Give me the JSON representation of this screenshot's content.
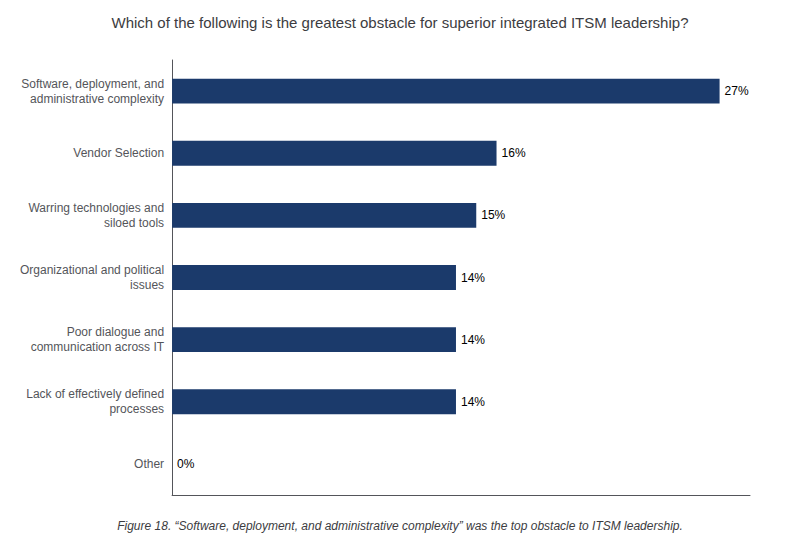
{
  "chart_data": {
    "type": "bar",
    "orientation": "horizontal",
    "title": "Which of the following is the greatest obstacle for superior integrated ITSM leadership?",
    "categories": [
      "Other",
      "Lack of effectively defined\nprocesses",
      "Poor dialogue and\ncommunication across IT",
      "Organizational and political\nissues",
      "Warring technologies and\nsiloed tools",
      "Vendor Selection",
      "Software, deployment, and\nadministrative complexity"
    ],
    "values": [
      0,
      14,
      14,
      14,
      15,
      16,
      27
    ],
    "value_labels": [
      "0%",
      "14%",
      "14%",
      "14%",
      "15%",
      "16%",
      "27%"
    ],
    "data_labels": true,
    "color": "#1B3A6B",
    "xlim": [
      0,
      28.5
    ],
    "tick_labels": "y",
    "grid": false,
    "caption": "Figure 18. “Software, deployment, and administrative complexity” was the top obstacle to ITSM leadership."
  }
}
